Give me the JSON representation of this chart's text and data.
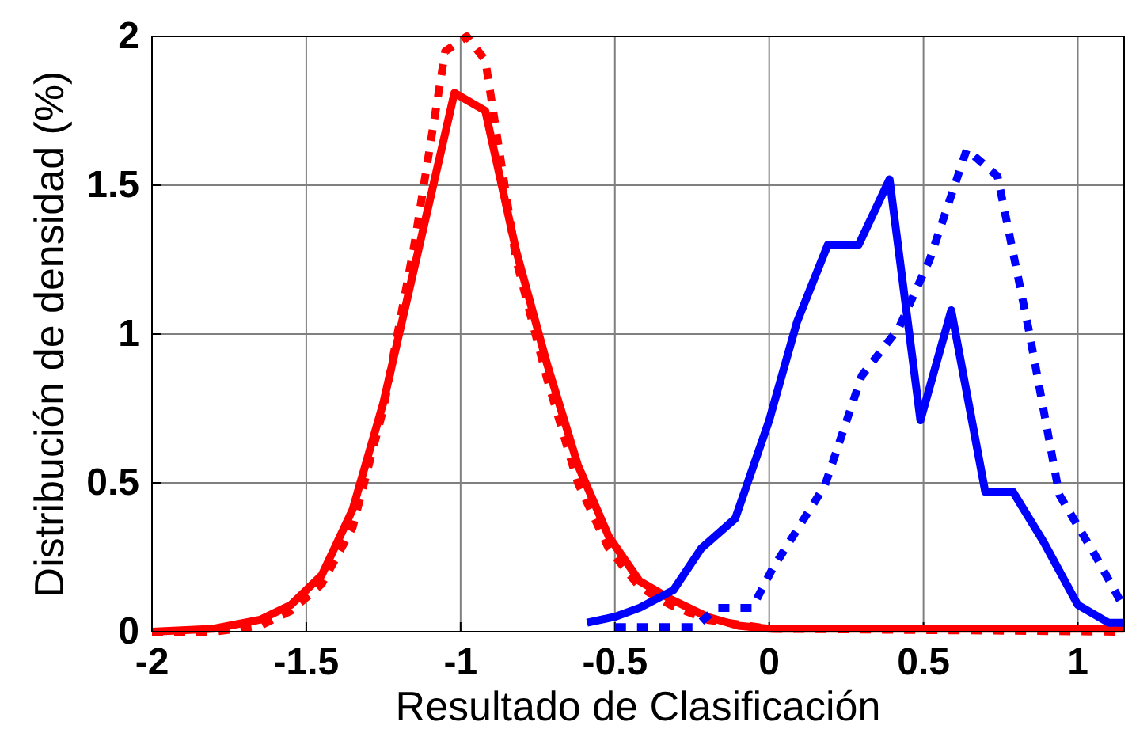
{
  "chart_data": {
    "type": "line",
    "xlabel": "Resultado de Clasificación",
    "ylabel": "Distribución de densidad (%)",
    "xlim": [
      -2,
      1.15
    ],
    "ylim": [
      0,
      2
    ],
    "xticks": [
      -2,
      -1.5,
      -1,
      -0.5,
      0,
      0.5,
      1
    ],
    "yticks": [
      0,
      0.5,
      1,
      1.5,
      2
    ],
    "grid": true,
    "marker": "none",
    "series": [
      {
        "color": "#ff0000",
        "line_style": "solid",
        "x": [
          -2,
          -1.8,
          -1.65,
          -1.55,
          -1.45,
          -1.35,
          -1.25,
          -1.02,
          -0.92,
          -0.82,
          -0.72,
          -0.62,
          -0.52,
          -0.42,
          -0.32,
          -0.2,
          -0.1,
          0,
          0.5,
          1.15
        ],
        "values": [
          0,
          0.01,
          0.04,
          0.09,
          0.19,
          0.41,
          0.77,
          1.81,
          1.75,
          1.28,
          0.9,
          0.56,
          0.32,
          0.17,
          0.11,
          0.05,
          0.02,
          0.01,
          0.01,
          0.01
        ]
      },
      {
        "color": "#ff0000",
        "line_style": "dotted",
        "x": [
          -2,
          -1.8,
          -1.65,
          -1.55,
          -1.45,
          -1.35,
          -1.25,
          -1.15,
          -1.05,
          -0.98,
          -0.92,
          -0.82,
          -0.72,
          -0.62,
          -0.52,
          -0.42,
          -0.32,
          -0.2,
          0,
          1.15
        ],
        "values": [
          0,
          0,
          0.02,
          0.07,
          0.16,
          0.35,
          0.75,
          1.3,
          1.95,
          2.0,
          1.92,
          1.25,
          0.85,
          0.5,
          0.28,
          0.15,
          0.09,
          0.04,
          0.01,
          0
        ]
      },
      {
        "color": "#0000ff",
        "line_style": "solid",
        "x": [
          -0.59,
          -0.5,
          -0.42,
          -0.31,
          -0.22,
          -0.11,
          0,
          0.09,
          0.19,
          0.29,
          0.39,
          0.49,
          0.59,
          0.7,
          0.79,
          0.89,
          1,
          1.1,
          1.15
        ],
        "values": [
          0.03,
          0.05,
          0.08,
          0.14,
          0.28,
          0.38,
          0.71,
          1.04,
          1.3,
          1.3,
          1.52,
          0.71,
          1.08,
          0.47,
          0.47,
          0.3,
          0.09,
          0.03,
          0.03
        ]
      },
      {
        "color": "#0000ff",
        "line_style": "dotted",
        "x": [
          -0.5,
          -0.24,
          -0.17,
          -0.055,
          0.01,
          0.18,
          0.3,
          0.42,
          0.52,
          0.64,
          0.74,
          0.84,
          0.94,
          1.06,
          1.15
        ],
        "values": [
          0.015,
          0.015,
          0.08,
          0.08,
          0.21,
          0.49,
          0.86,
          1.02,
          1.25,
          1.62,
          1.53,
          1.02,
          0.46,
          0.25,
          0.08
        ]
      }
    ]
  }
}
